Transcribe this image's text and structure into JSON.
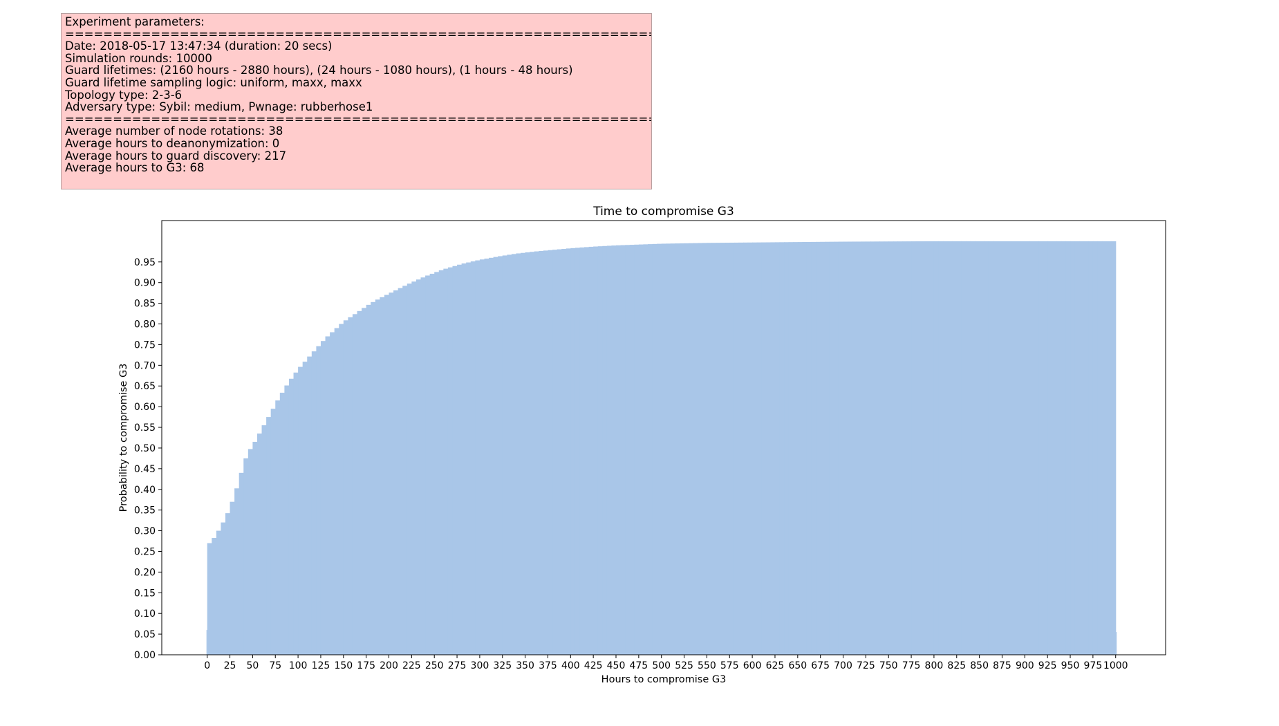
{
  "params": {
    "lines": [
      "Experiment parameters:",
      "=====================================================================",
      "Date: 2018-05-17 13:47:34 (duration: 20 secs)",
      "Simulation rounds: 10000",
      "Guard lifetimes: (2160 hours - 2880 hours), (24 hours - 1080 hours), (1 hours - 48 hours)",
      "Guard lifetime sampling logic: uniform, maxx, maxx",
      "Topology type: 2-3-6",
      "Adversary type: Sybil: medium, Pwnage: rubberhose1",
      "=====================================================================",
      "Average number of node rotations: 38",
      "Average hours to deanonymization: 0",
      "Average hours to guard discovery: 217",
      "Average hours to G3: 68"
    ],
    "background": "#ffcccc"
  },
  "chart_data": {
    "type": "bar",
    "subtype": "cumulative histogram",
    "title": "Time to compromise G3",
    "xlabel": "Hours to compromise G3",
    "ylabel": "Probability to compromise G3",
    "bar_color": "#a9c6e8",
    "xlim": [
      -50,
      1055
    ],
    "ylim": [
      0,
      1.05
    ],
    "xticks": [
      0,
      25,
      50,
      75,
      100,
      125,
      150,
      175,
      200,
      225,
      250,
      275,
      300,
      325,
      350,
      375,
      400,
      425,
      450,
      475,
      500,
      525,
      550,
      575,
      600,
      625,
      650,
      675,
      700,
      725,
      750,
      775,
      800,
      825,
      850,
      875,
      900,
      925,
      950,
      975,
      1000
    ],
    "yticks": [
      0.0,
      0.05,
      0.1,
      0.15,
      0.2,
      0.25,
      0.3,
      0.35,
      0.4,
      0.45,
      0.5,
      0.55,
      0.6,
      0.65,
      0.7,
      0.75,
      0.8,
      0.85,
      0.9,
      0.95
    ],
    "bin_width": 5,
    "points_x": [
      0,
      2,
      5,
      10,
      15,
      20,
      25,
      30,
      35,
      40,
      45,
      50,
      55,
      60,
      70,
      80,
      90,
      100,
      110,
      120,
      130,
      140,
      150,
      160,
      170,
      180,
      190,
      200,
      220,
      240,
      260,
      280,
      300,
      320,
      340,
      360,
      380,
      400,
      425,
      450,
      475,
      500,
      550,
      600,
      650,
      700,
      800,
      900,
      1000
    ],
    "points_y": [
      0.06,
      0.27,
      0.275,
      0.29,
      0.31,
      0.33,
      0.355,
      0.385,
      0.42,
      0.46,
      0.49,
      0.505,
      0.525,
      0.545,
      0.585,
      0.625,
      0.66,
      0.69,
      0.715,
      0.74,
      0.765,
      0.785,
      0.805,
      0.82,
      0.835,
      0.85,
      0.862,
      0.873,
      0.895,
      0.915,
      0.932,
      0.945,
      0.955,
      0.963,
      0.97,
      0.975,
      0.979,
      0.983,
      0.987,
      0.99,
      0.992,
      0.994,
      0.996,
      0.997,
      0.998,
      0.999,
      1.0,
      1.0,
      1.0
    ],
    "last_bin_value": 0.055
  }
}
